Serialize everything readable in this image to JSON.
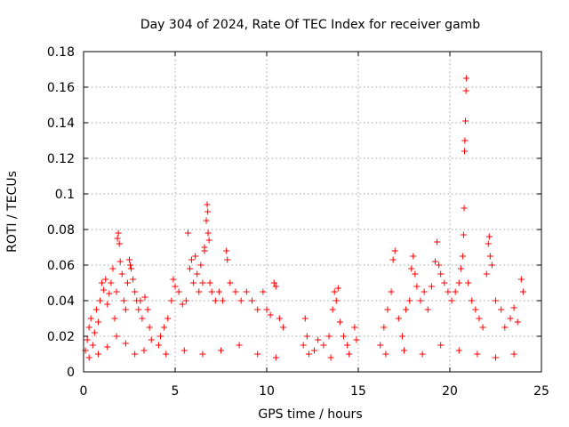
{
  "chart_data": {
    "type": "scatter",
    "title": "Day 304 of 2024, Rate Of TEC Index for receiver gamb",
    "xlabel": "GPS time / hours",
    "ylabel": "ROTI / TECUs",
    "xlim": [
      0,
      25
    ],
    "ylim": [
      0,
      0.18
    ],
    "xticks": [
      0,
      5,
      10,
      15,
      20,
      25
    ],
    "xtick_labels": [
      "0",
      "5",
      "10",
      "15",
      "20",
      "25"
    ],
    "yticks": [
      0,
      0.02,
      0.04,
      0.06,
      0.08,
      0.1,
      0.12,
      0.14,
      0.16,
      0.18
    ],
    "ytick_labels": [
      "0",
      "0.02",
      "0.04",
      "0.06",
      "0.08",
      "0.1",
      "0.12",
      "0.14",
      "0.16",
      "0.18"
    ],
    "grid": true,
    "marker": "+",
    "color": "#ff0000",
    "series": [
      {
        "name": "ROTI",
        "points": [
          [
            0.1,
            0.012
          ],
          [
            0.2,
            0.018
          ],
          [
            0.3,
            0.025
          ],
          [
            0.4,
            0.03
          ],
          [
            0.5,
            0.015
          ],
          [
            0.6,
            0.022
          ],
          [
            0.7,
            0.035
          ],
          [
            0.8,
            0.028
          ],
          [
            0.9,
            0.04
          ],
          [
            1.0,
            0.05
          ],
          [
            1.1,
            0.046
          ],
          [
            1.2,
            0.052
          ],
          [
            1.3,
            0.038
          ],
          [
            1.4,
            0.044
          ],
          [
            1.5,
            0.05
          ],
          [
            1.6,
            0.058
          ],
          [
            1.7,
            0.03
          ],
          [
            1.8,
            0.045
          ],
          [
            1.85,
            0.075
          ],
          [
            1.9,
            0.078
          ],
          [
            1.95,
            0.072
          ],
          [
            2.0,
            0.062
          ],
          [
            2.1,
            0.055
          ],
          [
            2.2,
            0.04
          ],
          [
            2.3,
            0.035
          ],
          [
            2.4,
            0.05
          ],
          [
            2.5,
            0.063
          ],
          [
            2.55,
            0.06
          ],
          [
            2.6,
            0.058
          ],
          [
            2.7,
            0.052
          ],
          [
            2.8,
            0.045
          ],
          [
            2.9,
            0.04
          ],
          [
            3.0,
            0.035
          ],
          [
            3.1,
            0.04
          ],
          [
            3.2,
            0.03
          ],
          [
            3.35,
            0.042
          ],
          [
            3.5,
            0.035
          ],
          [
            3.6,
            0.025
          ],
          [
            3.7,
            0.018
          ],
          [
            0.3,
            0.008
          ],
          [
            0.8,
            0.01
          ],
          [
            1.3,
            0.014
          ],
          [
            1.8,
            0.02
          ],
          [
            2.3,
            0.016
          ],
          [
            2.8,
            0.01
          ],
          [
            3.3,
            0.012
          ],
          [
            4.1,
            0.015
          ],
          [
            4.2,
            0.02
          ],
          [
            4.4,
            0.025
          ],
          [
            4.6,
            0.03
          ],
          [
            4.8,
            0.04
          ],
          [
            4.9,
            0.052
          ],
          [
            5.0,
            0.048
          ],
          [
            5.2,
            0.045
          ],
          [
            5.4,
            0.038
          ],
          [
            5.6,
            0.04
          ],
          [
            5.8,
            0.058
          ],
          [
            5.9,
            0.063
          ],
          [
            6.0,
            0.05
          ],
          [
            6.1,
            0.065
          ],
          [
            6.2,
            0.055
          ],
          [
            6.3,
            0.045
          ],
          [
            6.4,
            0.06
          ],
          [
            6.5,
            0.05
          ],
          [
            6.6,
            0.068
          ],
          [
            6.7,
            0.085
          ],
          [
            6.75,
            0.094
          ],
          [
            6.78,
            0.09
          ],
          [
            6.8,
            0.078
          ],
          [
            6.85,
            0.074
          ],
          [
            6.9,
            0.05
          ],
          [
            7.0,
            0.045
          ],
          [
            7.2,
            0.04
          ],
          [
            7.4,
            0.045
          ],
          [
            7.6,
            0.04
          ],
          [
            7.8,
            0.068
          ],
          [
            7.85,
            0.063
          ],
          [
            8.0,
            0.05
          ],
          [
            8.3,
            0.045
          ],
          [
            8.6,
            0.04
          ],
          [
            8.9,
            0.045
          ],
          [
            9.2,
            0.04
          ],
          [
            9.5,
            0.035
          ],
          [
            9.8,
            0.045
          ],
          [
            10.0,
            0.035
          ],
          [
            10.2,
            0.032
          ],
          [
            10.4,
            0.05
          ],
          [
            10.5,
            0.048
          ],
          [
            10.7,
            0.03
          ],
          [
            10.9,
            0.025
          ],
          [
            4.5,
            0.01
          ],
          [
            5.5,
            0.012
          ],
          [
            6.5,
            0.01
          ],
          [
            7.5,
            0.012
          ],
          [
            8.5,
            0.015
          ],
          [
            9.5,
            0.01
          ],
          [
            10.5,
            0.008
          ],
          [
            5.7,
            0.078
          ],
          [
            6.6,
            0.07
          ],
          [
            12.0,
            0.015
          ],
          [
            12.1,
            0.03
          ],
          [
            12.2,
            0.02
          ],
          [
            12.3,
            0.01
          ],
          [
            12.6,
            0.012
          ],
          [
            12.8,
            0.018
          ],
          [
            13.1,
            0.015
          ],
          [
            13.4,
            0.02
          ],
          [
            13.6,
            0.035
          ],
          [
            13.7,
            0.045
          ],
          [
            13.8,
            0.04
          ],
          [
            13.9,
            0.047
          ],
          [
            14.0,
            0.028
          ],
          [
            14.2,
            0.02
          ],
          [
            14.4,
            0.015
          ],
          [
            14.8,
            0.025
          ],
          [
            14.9,
            0.018
          ],
          [
            13.5,
            0.008
          ],
          [
            14.5,
            0.01
          ],
          [
            16.2,
            0.015
          ],
          [
            16.4,
            0.025
          ],
          [
            16.6,
            0.035
          ],
          [
            16.8,
            0.045
          ],
          [
            16.9,
            0.063
          ],
          [
            17.0,
            0.068
          ],
          [
            17.2,
            0.03
          ],
          [
            17.4,
            0.02
          ],
          [
            17.6,
            0.035
          ],
          [
            17.8,
            0.04
          ],
          [
            17.9,
            0.058
          ],
          [
            18.0,
            0.065
          ],
          [
            18.1,
            0.055
          ],
          [
            18.2,
            0.048
          ],
          [
            18.4,
            0.04
          ],
          [
            18.6,
            0.045
          ],
          [
            18.8,
            0.035
          ],
          [
            19.0,
            0.048
          ],
          [
            19.2,
            0.062
          ],
          [
            19.3,
            0.073
          ],
          [
            19.4,
            0.06
          ],
          [
            19.5,
            0.055
          ],
          [
            19.7,
            0.05
          ],
          [
            19.9,
            0.045
          ],
          [
            20.1,
            0.04
          ],
          [
            20.3,
            0.045
          ],
          [
            20.5,
            0.05
          ],
          [
            20.6,
            0.058
          ],
          [
            20.7,
            0.065
          ],
          [
            20.75,
            0.077
          ],
          [
            20.78,
            0.092
          ],
          [
            20.8,
            0.124
          ],
          [
            20.82,
            0.13
          ],
          [
            20.85,
            0.141
          ],
          [
            20.88,
            0.158
          ],
          [
            20.9,
            0.165
          ],
          [
            21.0,
            0.05
          ],
          [
            21.2,
            0.04
          ],
          [
            21.4,
            0.035
          ],
          [
            21.6,
            0.03
          ],
          [
            21.8,
            0.025
          ],
          [
            22.0,
            0.055
          ],
          [
            22.1,
            0.072
          ],
          [
            22.15,
            0.076
          ],
          [
            22.2,
            0.065
          ],
          [
            22.3,
            0.06
          ],
          [
            22.5,
            0.04
          ],
          [
            22.8,
            0.035
          ],
          [
            23.0,
            0.025
          ],
          [
            23.3,
            0.03
          ],
          [
            23.5,
            0.036
          ],
          [
            23.7,
            0.028
          ],
          [
            23.9,
            0.052
          ],
          [
            24.0,
            0.045
          ],
          [
            16.5,
            0.01
          ],
          [
            17.5,
            0.012
          ],
          [
            18.5,
            0.01
          ],
          [
            19.5,
            0.015
          ],
          [
            20.5,
            0.012
          ],
          [
            21.5,
            0.01
          ],
          [
            22.5,
            0.008
          ],
          [
            23.5,
            0.01
          ]
        ]
      }
    ]
  }
}
